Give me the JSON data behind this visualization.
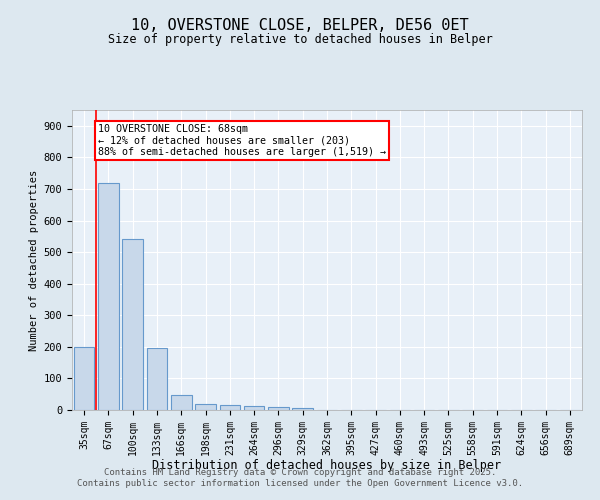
{
  "title_line1": "10, OVERSTONE CLOSE, BELPER, DE56 0ET",
  "title_line2": "Size of property relative to detached houses in Belper",
  "categories": [
    "35sqm",
    "67sqm",
    "100sqm",
    "133sqm",
    "166sqm",
    "198sqm",
    "231sqm",
    "264sqm",
    "296sqm",
    "329sqm",
    "362sqm",
    "395sqm",
    "427sqm",
    "460sqm",
    "493sqm",
    "525sqm",
    "558sqm",
    "591sqm",
    "624sqm",
    "656sqm",
    "689sqm"
  ],
  "values": [
    200,
    720,
    540,
    197,
    47,
    20,
    15,
    12,
    8,
    7,
    0,
    0,
    0,
    0,
    0,
    0,
    0,
    0,
    0,
    0,
    0
  ],
  "bar_color": "#c8d8ea",
  "bar_edge_color": "#6699cc",
  "redline_index": 1,
  "annotation_text": "10 OVERSTONE CLOSE: 68sqm\n← 12% of detached houses are smaller (203)\n88% of semi-detached houses are larger (1,519) →",
  "annotation_box_color": "white",
  "annotation_box_edge": "red",
  "xlabel": "Distribution of detached houses by size in Belper",
  "ylabel": "Number of detached properties",
  "ylim": [
    0,
    950
  ],
  "yticks": [
    0,
    100,
    200,
    300,
    400,
    500,
    600,
    700,
    800,
    900
  ],
  "footer_line1": "Contains HM Land Registry data © Crown copyright and database right 2025.",
  "footer_line2": "Contains public sector information licensed under the Open Government Licence v3.0.",
  "bg_color": "#dde8f0",
  "plot_bg_color": "#e8f0f8",
  "grid_color": "white"
}
